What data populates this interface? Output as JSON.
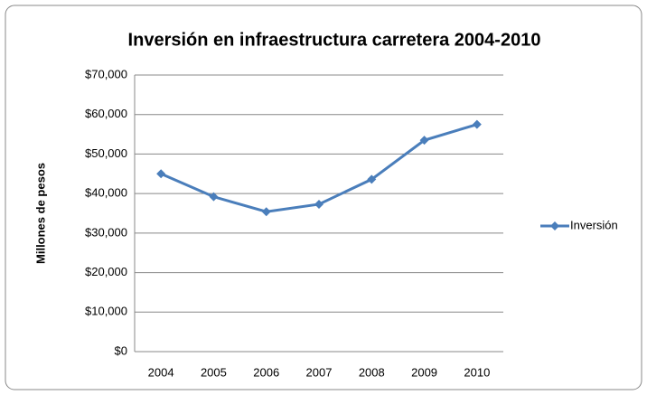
{
  "chart_data": {
    "type": "line",
    "title": "Inversión en infraestructura carretera 2004-2010",
    "y_label": "Millones de pesos",
    "categories": [
      "2004",
      "2005",
      "2006",
      "2007",
      "2008",
      "2009",
      "2010"
    ],
    "series": [
      {
        "name": "Inversión",
        "color": "#4a7ebb",
        "values": [
          45000,
          39200,
          35400,
          37300,
          43600,
          53500,
          57500
        ]
      }
    ],
    "ylim": [
      0,
      70000
    ],
    "yticks": [
      {
        "value": 0,
        "label": "$0"
      },
      {
        "value": 10000,
        "label": "$10,000"
      },
      {
        "value": 20000,
        "label": "$20,000"
      },
      {
        "value": 30000,
        "label": "$30,000"
      },
      {
        "value": 40000,
        "label": "$40,000"
      },
      {
        "value": 50000,
        "label": "$50,000"
      },
      {
        "value": 60000,
        "label": "$60,000"
      },
      {
        "value": 70000,
        "label": "$70,000"
      }
    ],
    "grid": true,
    "legend": "right"
  }
}
